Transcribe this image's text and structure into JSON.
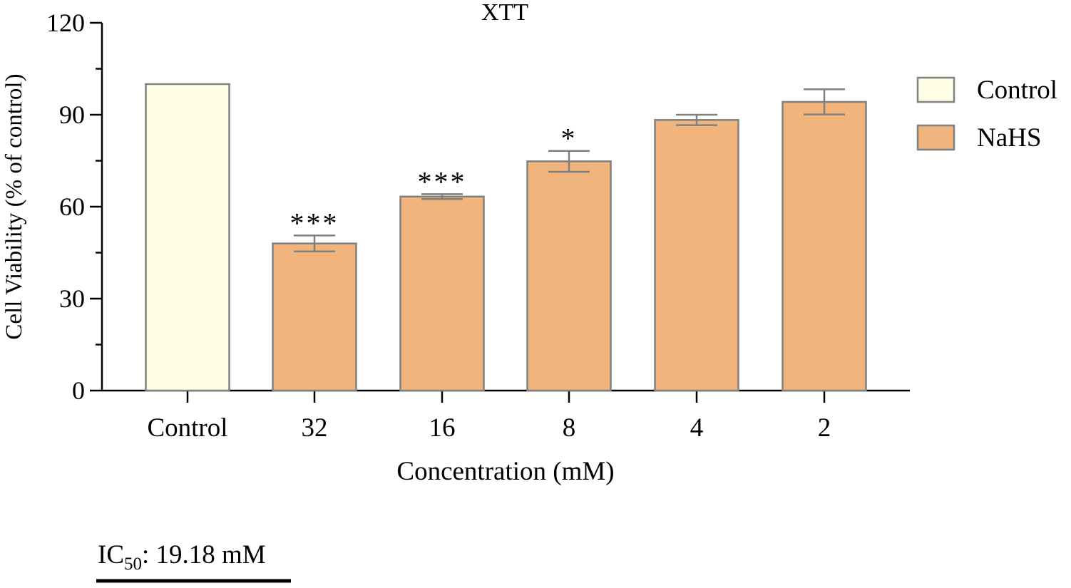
{
  "chart_data": {
    "type": "bar",
    "title": "XTT",
    "xlabel": "Concentration (mM)",
    "ylabel": "Cell Viability (% of control)",
    "ylim": [
      0,
      120
    ],
    "yticks": [
      0,
      30,
      60,
      90,
      120
    ],
    "grid": false,
    "legend_position": "right",
    "categories": [
      "Control",
      "32",
      "16",
      "8",
      "4",
      "2"
    ],
    "values": [
      100,
      48,
      63.3,
      74.8,
      88.3,
      94.2
    ],
    "errors": [
      0,
      2.6,
      0.8,
      3.4,
      1.7,
      4.1
    ],
    "significance": [
      "",
      "***",
      "***",
      "*",
      "",
      ""
    ],
    "bar_groups": [
      "Control",
      "NaHS",
      "NaHS",
      "NaHS",
      "NaHS",
      "NaHS"
    ],
    "series": [
      {
        "name": "Control",
        "color": "#FFFEE6"
      },
      {
        "name": "NaHS",
        "color": "#F1B47C"
      }
    ],
    "bar_edge_color": "#808080"
  },
  "annotation": {
    "ic_prefix": "IC",
    "ic_subscript": "50",
    "ic_rest": ": 19.18 mM"
  }
}
